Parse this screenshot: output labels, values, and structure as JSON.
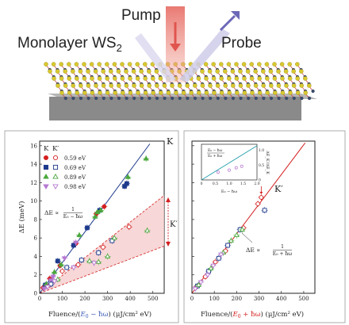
{
  "schematic": {
    "pump_label": "Pump",
    "probe_label": "Probe",
    "material_label": "Monolayer WS",
    "material_subscript": "2",
    "colors": {
      "pump_beam": "#e0554e",
      "probe_beam": "#6c68b8",
      "substrate": "#8a8a8a",
      "sulfur": "#d8c830",
      "tungsten": "#3a4a6a",
      "bond": "#c83c3c"
    }
  },
  "chart_data": [
    {
      "type": "scatter",
      "panel": "left",
      "xlabel_prefix": "Fluence/(",
      "xlabel_highlight": "E",
      "xlabel_highlight_sub": "0",
      "xlabel_highlight_tail": " − ħω",
      "xlabel_suffix": ") (μJ/cm² eV)",
      "ylabel": "ΔE (meV)",
      "xlim": [
        0,
        550
      ],
      "ylim": [
        0,
        16.5
      ],
      "xticks": [
        "0",
        "100",
        "200",
        "300",
        "400",
        "500"
      ],
      "yticks": [
        "0",
        "2",
        "4",
        "6",
        "8",
        "10",
        "12",
        "14",
        "16"
      ],
      "legend_header_k": "K",
      "legend_header_kp": "K′",
      "line_label_k": "K",
      "bracket_label_kp": "K′",
      "annotation": {
        "prefix": "ΔE ∝",
        "num": "1",
        "den": "E₀ − ħω"
      },
      "series": [
        {
          "name": "0.59 eV",
          "valley": "K",
          "color": "#d42020",
          "marker": "circle-filled",
          "points": [
            [
              15,
              0.6
            ],
            [
              45,
              1.6
            ],
            [
              90,
              3.0
            ],
            [
              160,
              5.4
            ],
            [
              250,
              8.6
            ],
            [
              285,
              9.4
            ]
          ]
        },
        {
          "name": "0.69 eV",
          "valley": "K",
          "color": "#1e3a8c",
          "marker": "square-filled",
          "points": [
            [
              25,
              0.9
            ],
            [
              80,
              3.5
            ],
            [
              150,
              5.2
            ],
            [
              210,
              7.1
            ],
            [
              265,
              9.0
            ],
            [
              375,
              11.6
            ],
            [
              385,
              11.9
            ]
          ]
        },
        {
          "name": "0.89 eV",
          "valley": "K",
          "color": "#4aa83c",
          "marker": "triangle-up-filled",
          "points": [
            [
              30,
              1.0
            ],
            [
              65,
              2.3
            ],
            [
              95,
              3.1
            ],
            [
              175,
              6.3
            ],
            [
              245,
              8.3
            ],
            [
              255,
              8.8
            ],
            [
              270,
              9.0
            ],
            [
              390,
              12.6
            ],
            [
              470,
              14.6
            ]
          ]
        },
        {
          "name": "0.98 eV",
          "valley": "K",
          "color": "#b478d2",
          "marker": "triangle-down-filled",
          "points": [
            [
              20,
              0.5
            ],
            [
              50,
              1.4
            ],
            [
              60,
              1.8
            ],
            [
              110,
              3.8
            ],
            [
              160,
              5.5
            ]
          ]
        },
        {
          "name": "0.59 eV",
          "valley": "K′",
          "color": "#d42020",
          "marker": "circle-open",
          "points": [
            [
              45,
              0.9
            ],
            [
              100,
              2.4
            ],
            [
              170,
              3.1
            ],
            [
              280,
              5.0
            ],
            [
              395,
              7.2
            ]
          ]
        },
        {
          "name": "0.69 eV",
          "valley": "K′",
          "color": "#1e3a8c",
          "marker": "square-open",
          "points": [
            [
              50,
              1.0
            ],
            [
              120,
              2.8
            ],
            [
              185,
              3.6
            ],
            [
              260,
              4.4
            ],
            [
              320,
              5.7
            ]
          ]
        },
        {
          "name": "0.89 eV",
          "valley": "K′",
          "color": "#4aa83c",
          "marker": "triangle-up-open",
          "points": [
            [
              80,
              1.5
            ],
            [
              220,
              3.5
            ],
            [
              260,
              3.4
            ],
            [
              300,
              4.0
            ],
            [
              330,
              6.0
            ],
            [
              475,
              6.8
            ]
          ]
        },
        {
          "name": "0.98 eV",
          "valley": "K′",
          "color": "#b478d2",
          "marker": "triangle-down-open",
          "points": [
            [
              35,
              0.7
            ],
            [
              65,
              1.3
            ],
            [
              150,
              2.8
            ],
            [
              240,
              3.3
            ]
          ]
        }
      ],
      "fit_k": {
        "slope": 0.0333
      },
      "band_kp": {
        "upper_slope": 0.0193,
        "lower_slope": 0.0093
      }
    },
    {
      "type": "scatter",
      "panel": "right",
      "xlabel_prefix": "Fluence/(",
      "xlabel_highlight": "E",
      "xlabel_highlight_sub": "0",
      "xlabel_highlight_tail": " + ħω",
      "xlabel_suffix": ") (μJ/cm² eV)",
      "ylabel": "",
      "xlim": [
        0,
        550
      ],
      "ylim": [
        0,
        16.5
      ],
      "xticks": [
        "0",
        "100",
        "200",
        "300",
        "400",
        "500"
      ],
      "line_label_kp": "K′",
      "annotation": {
        "prefix": "ΔE ∝",
        "num": "1",
        "den": "E₀ + ħω"
      },
      "fit": {
        "slope": 0.0322
      },
      "series": [
        {
          "name": "0.59 eV",
          "color": "#d42020",
          "marker": "circle-open",
          "points": [
            [
              20,
              0.7
            ],
            [
              60,
              1.8
            ],
            [
              105,
              3.4
            ],
            [
              150,
              4.6
            ],
            [
              230,
              7.1
            ],
            [
              295,
              9.7
            ],
            [
              310,
              10.4
            ]
          ]
        },
        {
          "name": "0.69 eV",
          "color": "#1e3a8c",
          "marker": "square-open",
          "points": [
            [
              25,
              0.8
            ],
            [
              75,
              2.4
            ],
            [
              120,
              3.8
            ],
            [
              160,
              5.2
            ],
            [
              215,
              6.9
            ],
            [
              325,
              9.0
            ]
          ]
        },
        {
          "name": "0.89 eV",
          "color": "#4aa83c",
          "marker": "triangle-up-open",
          "points": [
            [
              30,
              0.9
            ],
            [
              85,
              2.7
            ],
            [
              140,
              4.4
            ],
            [
              175,
              5.7
            ],
            [
              200,
              6.3
            ],
            [
              225,
              6.9
            ]
          ]
        },
        {
          "name": "0.98 eV",
          "color": "#b478d2",
          "marker": "triangle-down-open",
          "points": [
            [
              15,
              0.5
            ],
            [
              40,
              1.2
            ],
            [
              70,
              2.0
            ],
            [
              95,
              3.0
            ],
            [
              130,
              4.2
            ]
          ]
        }
      ],
      "inset": {
        "xlabel": "E₀ − ħω",
        "ylabel": "ΔE_K′/ΔE_K",
        "xticks": [
          "0",
          "0.5",
          "1.0",
          "1.5",
          "2.0"
        ],
        "yticks": [
          "0",
          "0.5",
          "1.0"
        ],
        "legend_num": "E₀ − ħω",
        "legend_den": "E₀ + ħω",
        "points": [
          [
            0.6,
            0.26
          ],
          [
            1.0,
            0.33
          ],
          [
            1.25,
            0.41
          ],
          [
            1.45,
            0.46
          ]
        ]
      }
    }
  ]
}
